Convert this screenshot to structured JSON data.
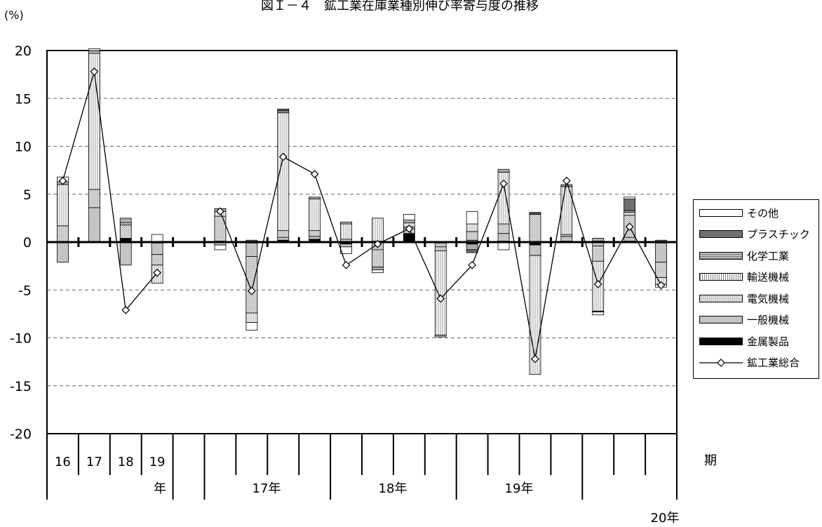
{
  "title": "図Ｉ－４　鉱工業在庫業種別伸び率寄与度の推移",
  "unit_label": "(%)",
  "period_label": "期",
  "colors": {
    "sonota": "#ffffff",
    "plastic": "#707070",
    "kagaku": "#b4b4b4",
    "yuso": "#f4f4f4",
    "denki": "#cfcfcf",
    "ippan": "#c4c4c4",
    "kinzoku": "#000000"
  },
  "legend": [
    {
      "key": "sonota",
      "label": "その他",
      "type": "bar"
    },
    {
      "key": "plastic",
      "label": "プラスチック",
      "type": "bar"
    },
    {
      "key": "kagaku",
      "label": "化学工業",
      "type": "bar"
    },
    {
      "key": "yuso",
      "label": "輸送機械",
      "type": "bar"
    },
    {
      "key": "denki",
      "label": "電気機械",
      "type": "bar"
    },
    {
      "key": "ippan",
      "label": "一般機械",
      "type": "bar"
    },
    {
      "key": "kinzoku",
      "label": "金属製品",
      "type": "bar"
    },
    {
      "key": "total",
      "label": "鉱工業総合",
      "type": "line"
    }
  ],
  "chart_data": {
    "type": "bar",
    "stacked": true,
    "ylim": [
      -20,
      20
    ],
    "yticks": [
      20,
      15,
      10,
      5,
      0,
      -5,
      -10,
      -15,
      -20
    ],
    "grid": "dashed horizontal",
    "categories": [
      "16",
      "17",
      "18",
      "19",
      "",
      "",
      "",
      "",
      "",
      "",
      "",
      "",
      "",
      "",
      "",
      "",
      "",
      "",
      "",
      ""
    ],
    "group_labels": [
      "年",
      "17年",
      "18年",
      "19年",
      "20年"
    ],
    "series": [
      {
        "key": "kinzoku",
        "name": "金属製品",
        "values": [
          0,
          0,
          0.4,
          -0.1,
          null,
          0.1,
          -0.1,
          0.2,
          0.3,
          -0.2,
          0.1,
          0.9,
          -0.1,
          -0.2,
          0.1,
          -0.3,
          0.1,
          0.1,
          0.1,
          -0.1
        ]
      },
      {
        "key": "ippan",
        "name": "一般機械",
        "values": [
          -2.1,
          3.6,
          -2.4,
          -1.2,
          null,
          -0.3,
          -1.4,
          0.3,
          0.3,
          -0.3,
          -0.8,
          0.5,
          -0.4,
          0.2,
          0.8,
          -1.1,
          0.5,
          -0.4,
          0.4,
          -2.0
        ]
      },
      {
        "key": "denki",
        "name": "電気機械",
        "values": [
          1.7,
          1.9,
          1.4,
          -1.1,
          null,
          2.6,
          -5.9,
          0.7,
          0.6,
          0.3,
          -1.8,
          0.2,
          -0.4,
          0.9,
          1.0,
          2.9,
          0.2,
          -1.6,
          2.3,
          -1.6
        ]
      },
      {
        "key": "yuso",
        "name": "輸送機械",
        "values": [
          4.3,
          14.2,
          0.2,
          -1.9,
          null,
          0.5,
          -1.0,
          12.3,
          3.3,
          1.6,
          2.4,
          0.4,
          -8.8,
          0.8,
          5.4,
          -12.4,
          5.0,
          -5.2,
          0.3,
          -0.7
        ]
      },
      {
        "key": "kagaku",
        "name": "化学工業",
        "values": [
          0.3,
          0.3,
          0.5,
          0,
          null,
          0.3,
          0.2,
          0.2,
          0.2,
          0.2,
          -0.3,
          0.3,
          -0.2,
          -0.6,
          0.3,
          0.1,
          0.2,
          0.3,
          0.2,
          0.2
        ]
      },
      {
        "key": "plastic",
        "name": "プラスチック",
        "values": [
          0,
          0,
          0,
          0,
          null,
          0,
          0,
          0.1,
          0,
          0,
          0,
          0,
          0,
          -0.3,
          0,
          0.1,
          0,
          -0.1,
          1.2,
          0
        ]
      },
      {
        "key": "sonota",
        "name": "その他",
        "values": [
          0.5,
          0.2,
          0,
          0.8,
          null,
          -0.5,
          -0.8,
          0.1,
          0,
          -0.7,
          -0.3,
          0.6,
          0,
          1.3,
          -0.8,
          0,
          0,
          -0.3,
          0.2,
          -0.3
        ]
      }
    ],
    "line": {
      "key": "total",
      "name": "鉱工業総合",
      "values": [
        6.4,
        17.8,
        -7.1,
        -3.2,
        null,
        3.2,
        -5.1,
        8.9,
        7.1,
        -2.4,
        -0.2,
        1.4,
        -5.9,
        -2.4,
        6.1,
        -12.2,
        6.4,
        -4.4,
        1.6,
        -4.5
      ]
    }
  }
}
